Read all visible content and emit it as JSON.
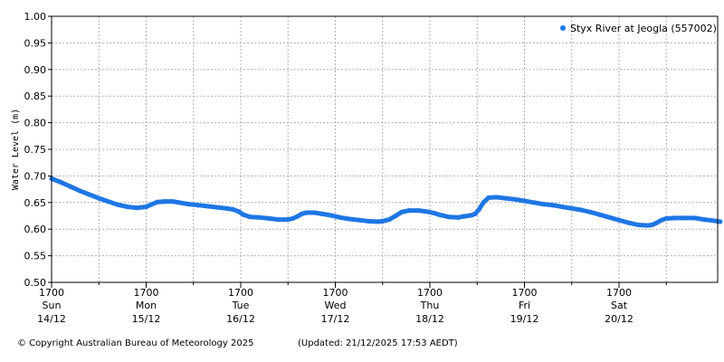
{
  "chart_data": {
    "type": "scatter",
    "ylabel": "Water Level (m)",
    "ylim": [
      0.5,
      1.0
    ],
    "yticks": [
      "0.50",
      "0.55",
      "0.60",
      "0.65",
      "0.70",
      "0.75",
      "0.80",
      "0.85",
      "0.90",
      "0.95",
      "1.00"
    ],
    "x_unit": "days since Sun 14/12 17:00",
    "xlim": [
      0,
      7.07
    ],
    "xticks": [
      {
        "time": "1700",
        "day": "Sun",
        "date": "14/12"
      },
      {
        "time": "1700",
        "day": "Mon",
        "date": "15/12"
      },
      {
        "time": "1700",
        "day": "Tue",
        "date": "16/12"
      },
      {
        "time": "1700",
        "day": "Wed",
        "date": "17/12"
      },
      {
        "time": "1700",
        "day": "Thu",
        "date": "18/12"
      },
      {
        "time": "1700",
        "day": "Fri",
        "date": "19/12"
      },
      {
        "time": "1700",
        "day": "Sat",
        "date": "20/12"
      }
    ],
    "grid": true,
    "legend_position": "top-right",
    "series": [
      {
        "name": "Styx River at Jeogla (557002)",
        "color": "#1f77e4",
        "points": [
          [
            0.0,
            0.695
          ],
          [
            0.1,
            0.688
          ],
          [
            0.2,
            0.68
          ],
          [
            0.3,
            0.672
          ],
          [
            0.4,
            0.665
          ],
          [
            0.5,
            0.658
          ],
          [
            0.6,
            0.652
          ],
          [
            0.7,
            0.646
          ],
          [
            0.8,
            0.642
          ],
          [
            0.9,
            0.64
          ],
          [
            0.95,
            0.641
          ],
          [
            1.0,
            0.642
          ],
          [
            1.05,
            0.646
          ],
          [
            1.12,
            0.651
          ],
          [
            1.2,
            0.652
          ],
          [
            1.28,
            0.652
          ],
          [
            1.35,
            0.65
          ],
          [
            1.45,
            0.647
          ],
          [
            1.55,
            0.645
          ],
          [
            1.65,
            0.643
          ],
          [
            1.75,
            0.641
          ],
          [
            1.85,
            0.639
          ],
          [
            1.92,
            0.637
          ],
          [
            1.98,
            0.633
          ],
          [
            2.03,
            0.627
          ],
          [
            2.1,
            0.623
          ],
          [
            2.2,
            0.622
          ],
          [
            2.3,
            0.62
          ],
          [
            2.4,
            0.618
          ],
          [
            2.5,
            0.618
          ],
          [
            2.55,
            0.62
          ],
          [
            2.6,
            0.624
          ],
          [
            2.65,
            0.629
          ],
          [
            2.7,
            0.631
          ],
          [
            2.78,
            0.631
          ],
          [
            2.85,
            0.629
          ],
          [
            2.95,
            0.626
          ],
          [
            3.05,
            0.622
          ],
          [
            3.15,
            0.619
          ],
          [
            3.25,
            0.617
          ],
          [
            3.35,
            0.615
          ],
          [
            3.45,
            0.614
          ],
          [
            3.5,
            0.615
          ],
          [
            3.57,
            0.618
          ],
          [
            3.63,
            0.624
          ],
          [
            3.7,
            0.632
          ],
          [
            3.78,
            0.635
          ],
          [
            3.88,
            0.635
          ],
          [
            3.97,
            0.633
          ],
          [
            4.05,
            0.63
          ],
          [
            4.1,
            0.627
          ],
          [
            4.2,
            0.623
          ],
          [
            4.3,
            0.622
          ],
          [
            4.36,
            0.624
          ],
          [
            4.44,
            0.626
          ],
          [
            4.48,
            0.629
          ],
          [
            4.52,
            0.637
          ],
          [
            4.57,
            0.651
          ],
          [
            4.62,
            0.659
          ],
          [
            4.7,
            0.66
          ],
          [
            4.8,
            0.658
          ],
          [
            4.9,
            0.656
          ],
          [
            5.0,
            0.653
          ],
          [
            5.1,
            0.65
          ],
          [
            5.2,
            0.647
          ],
          [
            5.3,
            0.645
          ],
          [
            5.4,
            0.642
          ],
          [
            5.5,
            0.639
          ],
          [
            5.6,
            0.636
          ],
          [
            5.7,
            0.632
          ],
          [
            5.8,
            0.627
          ],
          [
            5.9,
            0.622
          ],
          [
            6.0,
            0.617
          ],
          [
            6.1,
            0.612
          ],
          [
            6.2,
            0.608
          ],
          [
            6.3,
            0.607
          ],
          [
            6.35,
            0.608
          ],
          [
            6.4,
            0.612
          ],
          [
            6.45,
            0.617
          ],
          [
            6.5,
            0.62
          ],
          [
            6.6,
            0.621
          ],
          [
            6.7,
            0.621
          ],
          [
            6.8,
            0.621
          ],
          [
            6.9,
            0.618
          ],
          [
            7.0,
            0.616
          ],
          [
            7.07,
            0.614
          ]
        ]
      }
    ]
  },
  "footer": {
    "copyright": "© Copyright Australian Bureau of Meteorology 2025",
    "updated": "(Updated: 21/12/2025 17:53 AEDT)"
  }
}
